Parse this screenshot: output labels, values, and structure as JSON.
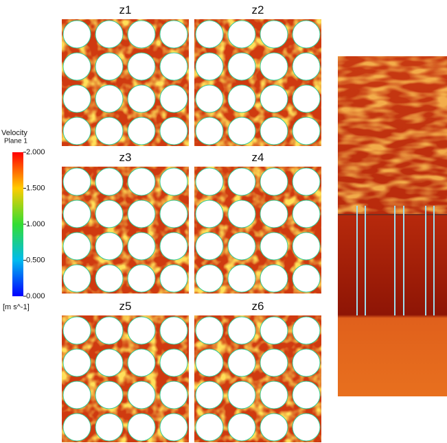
{
  "panels": [
    {
      "label": "z1"
    },
    {
      "label": "z2"
    },
    {
      "label": "z3"
    },
    {
      "label": "z4"
    },
    {
      "label": "z5"
    },
    {
      "label": "z6"
    }
  ],
  "colorbar": {
    "title": "Velocity",
    "subtitle": "Plane 1",
    "ticks": [
      "2.000",
      "1.500",
      "1.000",
      "0.500",
      "0.000"
    ],
    "unit": "[m s^-1]"
  }
}
